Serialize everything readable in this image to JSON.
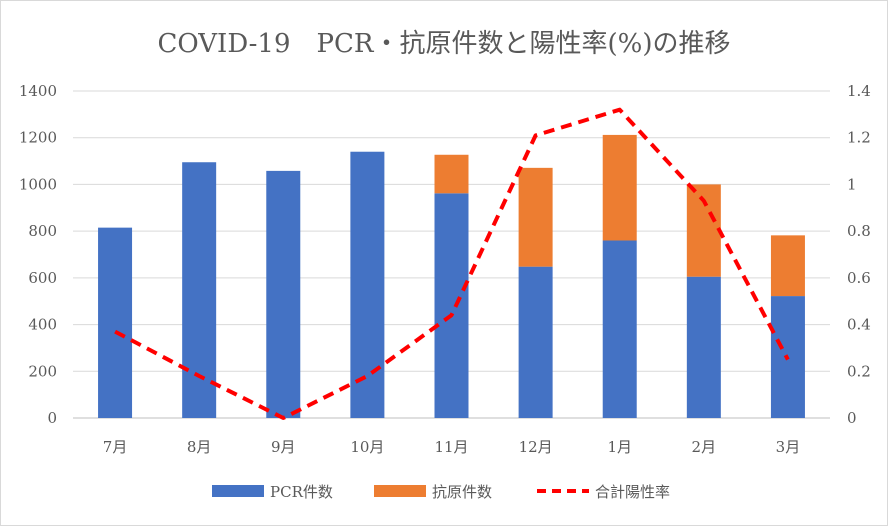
{
  "chart_data": {
    "type": "bar",
    "title": "COVID-19　PCR・抗原件数と陽性率(%)の推移",
    "categories": [
      "7月",
      "8月",
      "9月",
      "10月",
      "11月",
      "12月",
      "1月",
      "2月",
      "3月"
    ],
    "series": [
      {
        "name": "PCR件数",
        "type": "bar",
        "stack": "tests",
        "axis": "left",
        "color": "#4472c4",
        "values": [
          815,
          1095,
          1058,
          1140,
          962,
          648,
          760,
          605,
          522
        ]
      },
      {
        "name": "抗原件数",
        "type": "bar",
        "stack": "tests",
        "axis": "left",
        "color": "#ed7d31",
        "values": [
          0,
          0,
          0,
          0,
          165,
          423,
          452,
          395,
          260
        ]
      },
      {
        "name": "合計陽性率",
        "type": "line",
        "axis": "right",
        "color": "#ff0000",
        "dash": "dashed",
        "values": [
          0.37,
          0.18,
          0.0,
          0.18,
          0.44,
          1.21,
          1.32,
          0.93,
          0.25
        ]
      }
    ],
    "y_left": {
      "min": 0,
      "max": 1400,
      "ticks": [
        "0",
        "200",
        "400",
        "600",
        "800",
        "1000",
        "1200",
        "1400"
      ]
    },
    "y_right": {
      "min": 0,
      "max": 1.4,
      "ticks": [
        "0",
        "0.2",
        "0.4",
        "0.6",
        "0.8",
        "1",
        "1.2",
        "1.4"
      ]
    },
    "grid": true,
    "legend_position": "bottom"
  }
}
